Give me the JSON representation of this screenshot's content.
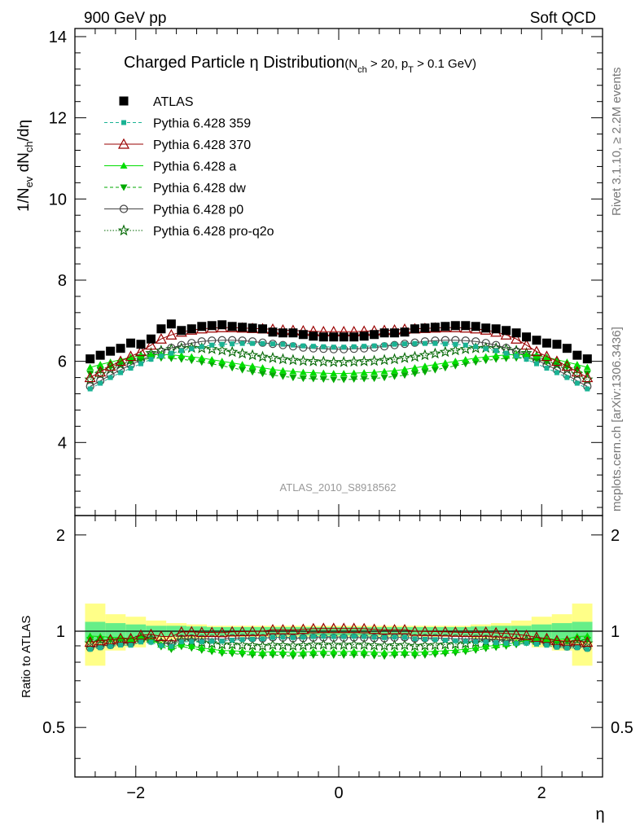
{
  "header": {
    "left": "900 GeV pp",
    "right": "Soft QCD"
  },
  "side_text": {
    "rivet": "Rivet 3.1.10, ≥ 2.2M events",
    "mcplots": "mcplots.cern.ch [arXiv:1306.3436]"
  },
  "plot_title": {
    "main": "Charged Particle η Distribution",
    "cond_open": "(N",
    "cond_sub1": "ch",
    "cond_mid": " > 20, p",
    "cond_sub2": "T",
    "cond_end": " > 0.1 GeV)"
  },
  "ylabel": {
    "a": "1/N",
    "a_sub": "ev",
    "b": " dN",
    "b_sub": "ch",
    "c": "/dη"
  },
  "ratio_ylabel": "Ratio to ATLAS",
  "xlabel": "η",
  "watermark": "ATLAS_2010_S8918562",
  "colors": {
    "atlas": "#000000",
    "p359": "#1ab394",
    "p370": "#990000",
    "pa": "#00dd00",
    "pdw": "#00aa00",
    "pp0": "#444444",
    "pq2o": "#006600",
    "band_inner": "#66ee88",
    "band_outer": "#ffff88"
  },
  "chart_data": {
    "type": "scatter",
    "x": [
      -2.45,
      -2.35,
      -2.25,
      -2.15,
      -2.05,
      -1.95,
      -1.85,
      -1.75,
      -1.65,
      -1.55,
      -1.45,
      -1.35,
      -1.25,
      -1.15,
      -1.05,
      -0.95,
      -0.85,
      -0.75,
      -0.65,
      -0.55,
      -0.45,
      -0.35,
      -0.25,
      -0.15,
      -0.05,
      0.05,
      0.15,
      0.25,
      0.35,
      0.45,
      0.55,
      0.65,
      0.75,
      0.85,
      0.95,
      1.05,
      1.15,
      1.25,
      1.35,
      1.45,
      1.55,
      1.65,
      1.75,
      1.85,
      1.95,
      2.05,
      2.15,
      2.25,
      2.35,
      2.45
    ],
    "xlim": [
      -2.6,
      2.6
    ],
    "main": {
      "ylim": [
        2.2,
        14.2
      ],
      "yticks": [
        4,
        6,
        8,
        10,
        12,
        14
      ]
    },
    "ratio": {
      "ylim": [
        0.35,
        2.3
      ],
      "yticks": [
        0.5,
        1,
        2
      ]
    },
    "xticks": [
      -2,
      0,
      2
    ],
    "xtick_labels": [
      "−2",
      "0",
      "2"
    ],
    "series": [
      {
        "name": "ATLAS",
        "key": "atlas",
        "values": [
          6.06,
          6.15,
          6.25,
          6.32,
          6.45,
          6.42,
          6.55,
          6.8,
          6.92,
          6.76,
          6.8,
          6.86,
          6.88,
          6.9,
          6.86,
          6.84,
          6.82,
          6.8,
          6.72,
          6.7,
          6.7,
          6.66,
          6.62,
          6.6,
          6.6,
          6.6,
          6.6,
          6.62,
          6.66,
          6.7,
          6.7,
          6.72,
          6.8,
          6.82,
          6.84,
          6.86,
          6.88,
          6.88,
          6.86,
          6.82,
          6.8,
          6.76,
          6.7,
          6.6,
          6.52,
          6.45,
          6.42,
          6.32,
          6.15,
          6.06
        ]
      },
      {
        "name": "Pythia 6.428 359",
        "key": "p359",
        "values": [
          5.32,
          5.46,
          5.6,
          5.72,
          5.83,
          5.94,
          6.05,
          6.13,
          6.2,
          6.26,
          6.31,
          6.36,
          6.4,
          6.42,
          6.43,
          6.44,
          6.44,
          6.44,
          6.43,
          6.42,
          6.4,
          6.38,
          6.37,
          6.36,
          6.35,
          6.35,
          6.36,
          6.37,
          6.38,
          6.4,
          6.42,
          6.43,
          6.44,
          6.44,
          6.44,
          6.43,
          6.42,
          6.4,
          6.36,
          6.31,
          6.26,
          6.2,
          6.13,
          6.05,
          5.94,
          5.83,
          5.72,
          5.6,
          5.46,
          5.32
        ]
      },
      {
        "name": "Pythia 6.428 370",
        "key": "p370",
        "values": [
          5.6,
          5.74,
          5.88,
          6.0,
          6.12,
          6.24,
          6.4,
          6.55,
          6.65,
          6.72,
          6.77,
          6.8,
          6.82,
          6.83,
          6.83,
          6.82,
          6.81,
          6.8,
          6.79,
          6.77,
          6.76,
          6.75,
          6.74,
          6.73,
          6.73,
          6.73,
          6.73,
          6.74,
          6.75,
          6.76,
          6.77,
          6.79,
          6.8,
          6.81,
          6.82,
          6.83,
          6.83,
          6.82,
          6.8,
          6.77,
          6.72,
          6.65,
          6.55,
          6.4,
          6.24,
          6.12,
          6.0,
          5.88,
          5.74,
          5.6
        ]
      },
      {
        "name": "Pythia 6.428 a",
        "key": "pa",
        "values": [
          5.85,
          5.92,
          5.98,
          6.04,
          6.1,
          6.14,
          6.16,
          6.17,
          6.16,
          6.14,
          6.11,
          6.08,
          6.04,
          6.0,
          5.96,
          5.92,
          5.88,
          5.84,
          5.8,
          5.77,
          5.75,
          5.73,
          5.72,
          5.71,
          5.7,
          5.7,
          5.71,
          5.72,
          5.73,
          5.75,
          5.77,
          5.8,
          5.84,
          5.88,
          5.92,
          5.96,
          6.0,
          6.04,
          6.08,
          6.11,
          6.14,
          6.16,
          6.17,
          6.16,
          6.14,
          6.1,
          6.04,
          5.98,
          5.92,
          5.85
        ]
      },
      {
        "name": "Pythia 6.428 dw",
        "key": "pdw",
        "values": [
          5.7,
          5.78,
          5.86,
          5.93,
          5.99,
          6.04,
          6.07,
          6.08,
          6.07,
          6.05,
          6.02,
          5.98,
          5.94,
          5.89,
          5.84,
          5.79,
          5.74,
          5.7,
          5.66,
          5.63,
          5.6,
          5.58,
          5.57,
          5.56,
          5.55,
          5.55,
          5.56,
          5.57,
          5.58,
          5.6,
          5.63,
          5.66,
          5.7,
          5.74,
          5.79,
          5.84,
          5.89,
          5.94,
          5.98,
          6.02,
          6.05,
          6.07,
          6.08,
          6.07,
          6.04,
          5.99,
          5.93,
          5.86,
          5.78,
          5.7
        ]
      },
      {
        "name": "Pythia 6.428 p0",
        "key": "pp0",
        "values": [
          5.38,
          5.52,
          5.66,
          5.79,
          5.91,
          6.03,
          6.14,
          6.24,
          6.33,
          6.4,
          6.45,
          6.49,
          6.51,
          6.52,
          6.52,
          6.51,
          6.49,
          6.46,
          6.43,
          6.4,
          6.37,
          6.34,
          6.32,
          6.31,
          6.3,
          6.3,
          6.31,
          6.32,
          6.34,
          6.37,
          6.4,
          6.43,
          6.46,
          6.49,
          6.51,
          6.52,
          6.52,
          6.51,
          6.49,
          6.45,
          6.4,
          6.33,
          6.24,
          6.14,
          6.03,
          5.91,
          5.79,
          5.66,
          5.52,
          5.38
        ]
      },
      {
        "name": "Pythia 6.428 pro-q2o",
        "key": "pq2o",
        "values": [
          5.55,
          5.68,
          5.8,
          5.92,
          6.03,
          6.12,
          6.2,
          6.26,
          6.3,
          6.32,
          6.33,
          6.32,
          6.3,
          6.27,
          6.23,
          6.19,
          6.15,
          6.11,
          6.08,
          6.05,
          6.03,
          6.01,
          6.0,
          5.99,
          5.98,
          5.98,
          5.99,
          6.0,
          6.01,
          6.03,
          6.05,
          6.08,
          6.11,
          6.15,
          6.19,
          6.23,
          6.27,
          6.3,
          6.32,
          6.33,
          6.32,
          6.3,
          6.26,
          6.2,
          6.12,
          6.03,
          5.92,
          5.8,
          5.68,
          5.55
        ]
      }
    ],
    "band_edges": [
      -2.5,
      -2.3,
      -2.1,
      -1.9,
      -1.7,
      -1.5,
      -1.3,
      1.3,
      1.5,
      1.7,
      1.9,
      2.1,
      2.3,
      2.5
    ],
    "band_outer": [
      0.22,
      0.13,
      0.11,
      0.08,
      0.06,
      0.05,
      0.04,
      0.05,
      0.06,
      0.08,
      0.11,
      0.13,
      0.22
    ],
    "band_inner": [
      0.07,
      0.06,
      0.05,
      0.04,
      0.04,
      0.035,
      0.03,
      0.035,
      0.04,
      0.04,
      0.05,
      0.06,
      0.07
    ]
  }
}
